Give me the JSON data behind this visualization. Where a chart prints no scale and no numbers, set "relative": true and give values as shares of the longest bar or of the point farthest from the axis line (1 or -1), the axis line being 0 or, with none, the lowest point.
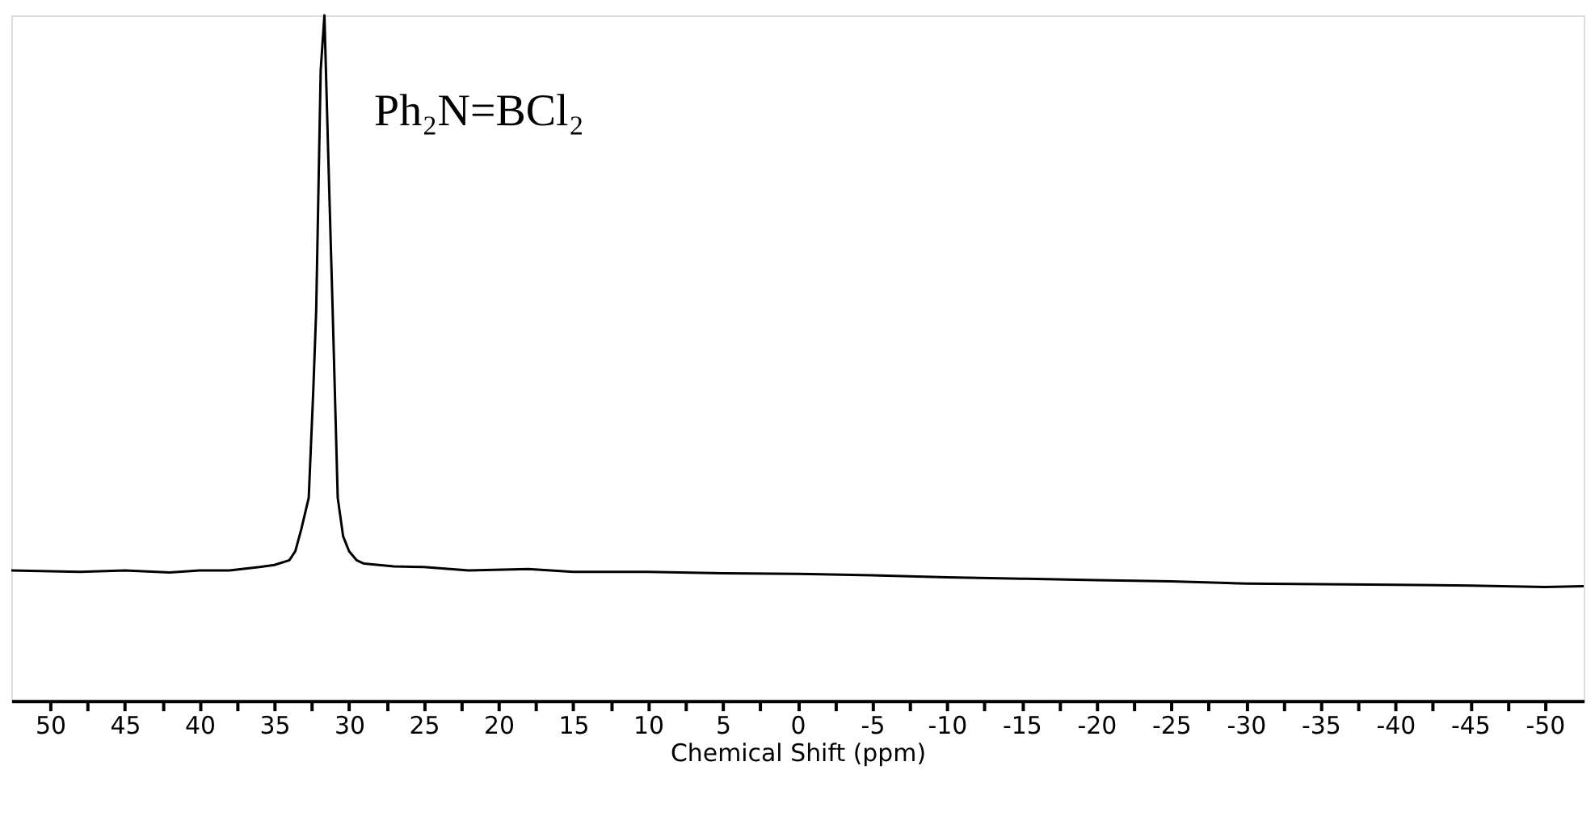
{
  "chart_data": {
    "type": "line",
    "relative": true,
    "xlabel": "Chemical Shift (ppm)",
    "annotations": [
      "Ph₂N=BCl₂"
    ],
    "x": [
      52.6,
      48,
      45,
      42,
      40,
      38,
      36,
      35,
      34,
      33.6,
      33.2,
      32.7,
      32.4,
      32.2,
      31.9,
      31.65,
      31.4,
      31.1,
      30.76,
      30.4,
      30.0,
      29.5,
      29,
      27,
      25,
      22,
      18,
      15,
      10,
      5,
      0,
      -5,
      -10,
      -15,
      -20,
      -25,
      -30,
      -35,
      -40,
      -45,
      -50,
      -52.6
    ],
    "series": [
      {
        "color": "#000000",
        "values": [
          0.19,
          0.188,
          0.19,
          0.187,
          0.19,
          0.19,
          0.195,
          0.198,
          0.205,
          0.218,
          0.25,
          0.296,
          0.45,
          0.57,
          0.92,
          1.0,
          0.8,
          0.57,
          0.296,
          0.24,
          0.218,
          0.205,
          0.2,
          0.196,
          0.195,
          0.19,
          0.192,
          0.188,
          0.188,
          0.186,
          0.185,
          0.183,
          0.18,
          0.178,
          0.176,
          0.174,
          0.171,
          0.17,
          0.169,
          0.168,
          0.166,
          0.167
        ]
      }
    ],
    "xlim": [
      52.6,
      -52.6
    ],
    "xticks": [
      50,
      {
        "value": 47.5,
        "label": null
      },
      45,
      {
        "value": 42.5,
        "label": null
      },
      40,
      {
        "value": 37.5,
        "label": null
      },
      35,
      {
        "value": 32.5,
        "label": null
      },
      30,
      {
        "value": 27.5,
        "label": null
      },
      25,
      {
        "value": 22.5,
        "label": null
      },
      20,
      {
        "value": 17.5,
        "label": null
      },
      15,
      {
        "value": 12.5,
        "label": null
      },
      10,
      {
        "value": 7.5,
        "label": null
      },
      5,
      {
        "value": 2.5,
        "label": null
      },
      0,
      {
        "value": -2.5,
        "label": null
      },
      -5,
      {
        "value": -7.5,
        "label": null
      },
      -10,
      {
        "value": -12.5,
        "label": null
      },
      -15,
      {
        "value": -17.5,
        "label": null
      },
      -20,
      {
        "value": -22.5,
        "label": null
      },
      -25,
      {
        "value": -27.5,
        "label": null
      },
      -30,
      {
        "value": -32.5,
        "label": null
      },
      -35,
      {
        "value": -37.5,
        "label": null
      },
      -40,
      {
        "value": -42.5,
        "label": null
      },
      -45,
      {
        "value": -47.5,
        "label": null
      },
      -50
    ],
    "grid": false,
    "line_style": "solid",
    "marker": "none"
  }
}
